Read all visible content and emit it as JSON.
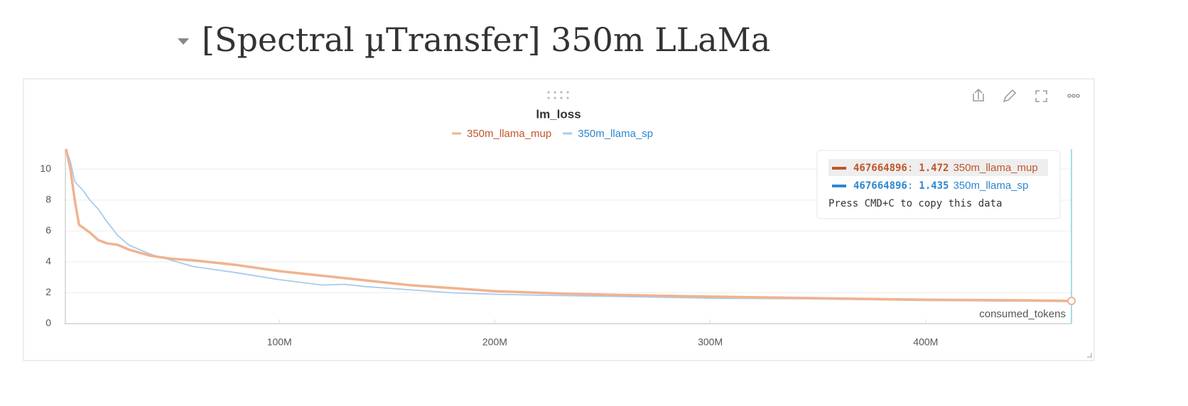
{
  "section_title": "[Spectral µTransfer] 350m LLaMa",
  "chart_data": {
    "type": "line",
    "title": "lm_loss",
    "x_label": "consumed_tokens",
    "x": [
      1000000,
      3000000,
      5000000,
      7000000,
      9000000,
      12000000,
      16000000,
      20000000,
      25000000,
      30000000,
      35000000,
      40000000,
      50000000,
      60000000,
      80000000,
      100000000,
      120000000,
      130000000,
      140000000,
      160000000,
      180000000,
      200000000,
      230000000,
      260000000,
      300000000,
      350000000,
      400000000,
      450000000,
      467664896
    ],
    "series": [
      {
        "name": "350m_llama_mup",
        "color": "#f0b38f",
        "label_color": "#c0562a",
        "width": 3.5,
        "values": [
          11.3,
          10,
          8,
          6.4,
          6.2,
          5.9,
          5.4,
          5.2,
          5.1,
          4.8,
          4.6,
          4.4,
          4.2,
          4.1,
          3.8,
          3.4,
          3.1,
          2.95,
          2.8,
          2.5,
          2.3,
          2.1,
          1.95,
          1.85,
          1.75,
          1.65,
          1.55,
          1.5,
          1.472
        ]
      },
      {
        "name": "350m_llama_sp",
        "color": "#a9cbea",
        "label_color": "#2f86d0",
        "width": 1.8,
        "values": [
          11.3,
          10.5,
          9.2,
          8.9,
          8.6,
          8,
          7.4,
          6.6,
          5.7,
          5.1,
          4.8,
          4.5,
          4.1,
          3.7,
          3.3,
          2.85,
          2.5,
          2.55,
          2.4,
          2.2,
          2.0,
          1.9,
          1.82,
          1.75,
          1.65,
          1.6,
          1.5,
          1.45,
          1.435
        ]
      }
    ],
    "xlim": [
      0,
      467664896
    ],
    "ylim": [
      0,
      11.3
    ],
    "xticks": [
      {
        "value": 100000000,
        "label": "100M"
      },
      {
        "value": 200000000,
        "label": "200M"
      },
      {
        "value": 300000000,
        "label": "300M"
      },
      {
        "value": 400000000,
        "label": "400M"
      }
    ],
    "yticks": [
      0,
      2,
      4,
      6,
      8,
      10
    ],
    "grid": true,
    "tooltip": {
      "separator": ":",
      "hint": "Press CMD+C to copy this data"
    }
  }
}
